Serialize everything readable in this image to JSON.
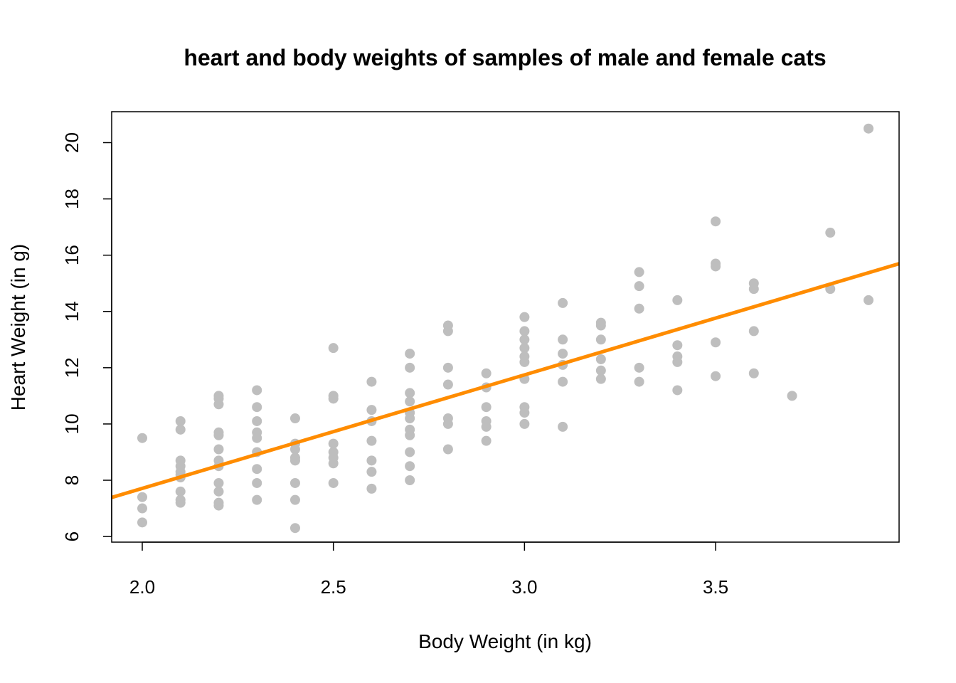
{
  "chart_data": {
    "type": "scatter",
    "title": "heart and body weights of samples of male and female cats",
    "xlabel": "Body Weight (in kg)",
    "ylabel": "Heart Weight (in g)",
    "xlim": [
      1.92,
      3.98
    ],
    "ylim": [
      5.8,
      21.1
    ],
    "xticks": [
      "2.0",
      "2.5",
      "3.0",
      "3.5"
    ],
    "yticks": [
      "6",
      "8",
      "10",
      "12",
      "14",
      "16",
      "18",
      "20"
    ],
    "grid": false,
    "legend": "none",
    "point_color": "#BEBEBE",
    "line_color": "#FF8C00",
    "regression_line": {
      "intercept": -0.357,
      "slope": 4.034
    },
    "points": [
      [
        2.0,
        6.5
      ],
      [
        2.0,
        7.0
      ],
      [
        2.0,
        7.4
      ],
      [
        2.0,
        9.5
      ],
      [
        2.1,
        7.2
      ],
      [
        2.1,
        7.3
      ],
      [
        2.1,
        7.6
      ],
      [
        2.1,
        8.1
      ],
      [
        2.1,
        8.2
      ],
      [
        2.1,
        8.3
      ],
      [
        2.1,
        8.5
      ],
      [
        2.1,
        8.7
      ],
      [
        2.1,
        9.8
      ],
      [
        2.1,
        10.1
      ],
      [
        2.2,
        7.1
      ],
      [
        2.2,
        7.2
      ],
      [
        2.2,
        7.6
      ],
      [
        2.2,
        7.9
      ],
      [
        2.2,
        8.5
      ],
      [
        2.2,
        8.7
      ],
      [
        2.2,
        9.1
      ],
      [
        2.2,
        9.6
      ],
      [
        2.2,
        9.7
      ],
      [
        2.2,
        10.7
      ],
      [
        2.2,
        10.9
      ],
      [
        2.2,
        11.0
      ],
      [
        2.3,
        7.3
      ],
      [
        2.3,
        7.9
      ],
      [
        2.3,
        8.4
      ],
      [
        2.3,
        9.0
      ],
      [
        2.3,
        9.5
      ],
      [
        2.3,
        9.7
      ],
      [
        2.3,
        10.1
      ],
      [
        2.3,
        10.6
      ],
      [
        2.3,
        11.2
      ],
      [
        2.4,
        6.3
      ],
      [
        2.4,
        7.3
      ],
      [
        2.4,
        7.9
      ],
      [
        2.4,
        8.7
      ],
      [
        2.4,
        8.8
      ],
      [
        2.4,
        9.1
      ],
      [
        2.4,
        9.3
      ],
      [
        2.4,
        10.2
      ],
      [
        2.5,
        7.9
      ],
      [
        2.5,
        8.6
      ],
      [
        2.5,
        8.8
      ],
      [
        2.5,
        9.0
      ],
      [
        2.5,
        9.3
      ],
      [
        2.5,
        10.9
      ],
      [
        2.5,
        11.0
      ],
      [
        2.5,
        12.7
      ],
      [
        2.6,
        7.7
      ],
      [
        2.6,
        8.3
      ],
      [
        2.6,
        8.7
      ],
      [
        2.6,
        9.4
      ],
      [
        2.6,
        10.1
      ],
      [
        2.6,
        10.5
      ],
      [
        2.6,
        11.5
      ],
      [
        2.7,
        8.0
      ],
      [
        2.7,
        8.5
      ],
      [
        2.7,
        9.0
      ],
      [
        2.7,
        9.6
      ],
      [
        2.7,
        9.8
      ],
      [
        2.7,
        10.2
      ],
      [
        2.7,
        10.4
      ],
      [
        2.7,
        10.8
      ],
      [
        2.7,
        11.1
      ],
      [
        2.7,
        12.0
      ],
      [
        2.7,
        12.5
      ],
      [
        2.8,
        9.1
      ],
      [
        2.8,
        10.0
      ],
      [
        2.8,
        10.2
      ],
      [
        2.8,
        11.4
      ],
      [
        2.8,
        12.0
      ],
      [
        2.8,
        13.3
      ],
      [
        2.8,
        13.5
      ],
      [
        2.9,
        9.4
      ],
      [
        2.9,
        9.9
      ],
      [
        2.9,
        10.1
      ],
      [
        2.9,
        10.6
      ],
      [
        2.9,
        11.3
      ],
      [
        2.9,
        11.8
      ],
      [
        3.0,
        10.0
      ],
      [
        3.0,
        10.4
      ],
      [
        3.0,
        10.6
      ],
      [
        3.0,
        11.6
      ],
      [
        3.0,
        12.2
      ],
      [
        3.0,
        12.4
      ],
      [
        3.0,
        12.7
      ],
      [
        3.0,
        13.0
      ],
      [
        3.0,
        13.3
      ],
      [
        3.0,
        13.8
      ],
      [
        3.1,
        9.9
      ],
      [
        3.1,
        11.5
      ],
      [
        3.1,
        12.1
      ],
      [
        3.1,
        12.5
      ],
      [
        3.1,
        13.0
      ],
      [
        3.1,
        14.3
      ],
      [
        3.2,
        11.6
      ],
      [
        3.2,
        11.9
      ],
      [
        3.2,
        12.3
      ],
      [
        3.2,
        13.0
      ],
      [
        3.2,
        13.5
      ],
      [
        3.2,
        13.6
      ],
      [
        3.3,
        11.5
      ],
      [
        3.3,
        12.0
      ],
      [
        3.3,
        14.1
      ],
      [
        3.3,
        14.9
      ],
      [
        3.3,
        15.4
      ],
      [
        3.4,
        11.2
      ],
      [
        3.4,
        12.2
      ],
      [
        3.4,
        12.4
      ],
      [
        3.4,
        12.8
      ],
      [
        3.4,
        14.4
      ],
      [
        3.5,
        11.7
      ],
      [
        3.5,
        12.9
      ],
      [
        3.5,
        15.6
      ],
      [
        3.5,
        15.7
      ],
      [
        3.5,
        17.2
      ],
      [
        3.6,
        11.8
      ],
      [
        3.6,
        13.3
      ],
      [
        3.6,
        14.8
      ],
      [
        3.6,
        15.0
      ],
      [
        3.7,
        11.0
      ],
      [
        3.8,
        14.8
      ],
      [
        3.8,
        16.8
      ],
      [
        3.9,
        14.4
      ],
      [
        3.9,
        20.5
      ]
    ]
  }
}
